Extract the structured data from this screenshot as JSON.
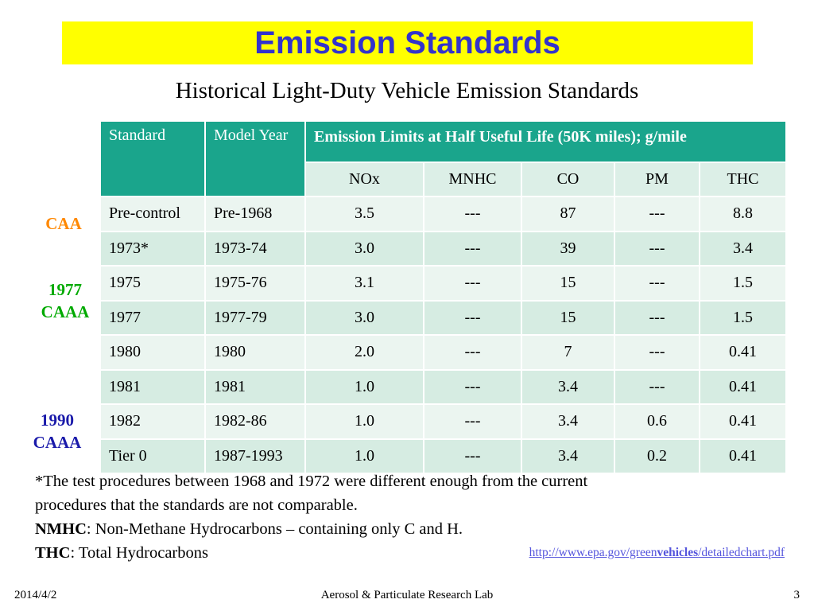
{
  "slide": {
    "title": "Emission Standards",
    "subtitle": "Historical Light-Duty Vehicle Emission Standards"
  },
  "table": {
    "headers": {
      "standard": "Standard",
      "model_year": "Model Year",
      "limits": "Emission Limits at Half Useful Life (50K miles); g/mile",
      "pollutants": [
        "NOx",
        "MNHC",
        "CO",
        "PM",
        "THC"
      ]
    },
    "rows": [
      {
        "standard": "Pre-control",
        "model_year": "Pre-1968",
        "nox": "3.5",
        "mnhc": "---",
        "co": "87",
        "pm": "---",
        "thc": "8.8"
      },
      {
        "standard": "1973*",
        "model_year": "1973-74",
        "nox": "3.0",
        "mnhc": "---",
        "co": "39",
        "pm": "---",
        "thc": "3.4"
      },
      {
        "standard": "1975",
        "model_year": "1975-76",
        "nox": "3.1",
        "mnhc": "---",
        "co": "15",
        "pm": "---",
        "thc": "1.5"
      },
      {
        "standard": "1977",
        "model_year": "1977-79",
        "nox": "3.0",
        "mnhc": "---",
        "co": "15",
        "pm": "---",
        "thc": "1.5"
      },
      {
        "standard": "1980",
        "model_year": "1980",
        "nox": "2.0",
        "mnhc": "---",
        "co": "7",
        "pm": "---",
        "thc": "0.41"
      },
      {
        "standard": "1981",
        "model_year": "1981",
        "nox": "1.0",
        "mnhc": "---",
        "co": "3.4",
        "pm": "---",
        "thc": "0.41"
      },
      {
        "standard": "1982",
        "model_year": "1982-86",
        "nox": "1.0",
        "mnhc": "---",
        "co": "3.4",
        "pm": "0.6",
        "thc": "0.41"
      },
      {
        "standard": "Tier 0",
        "model_year": "1987-1993",
        "nox": "1.0",
        "mnhc": "---",
        "co": "3.4",
        "pm": "0.2",
        "thc": "0.41"
      }
    ]
  },
  "side_labels": {
    "caa": "CAA",
    "caaa_1977": [
      "1977",
      "CAAA"
    ],
    "caaa_1990": [
      "1990",
      "CAAA"
    ]
  },
  "notes": {
    "footnote_line1": "*The test procedures between 1968 and 1972 were different enough from the current",
    "footnote_line2": "procedures that the standards are not comparable.",
    "nmhc_term": "NMHC",
    "nmhc_def": ": Non-Methane Hydrocarbons – containing only C and H.",
    "thc_term": "THC",
    "thc_def": ": Total Hydrocarbons"
  },
  "source_link": {
    "part1": "http://www.epa.gov/green",
    "part2": "vehicles",
    "part3": "/detailedchart.pdf"
  },
  "footer": {
    "date": "2014/4/2",
    "center": "Aerosol & Particulate Research Lab",
    "page": "3"
  },
  "colors": {
    "title_bg": "#ffff00",
    "title_text": "#3333cc",
    "table_header": "#1aa58c",
    "caa": "#ff8800",
    "caaa_1977": "#00aa00",
    "caaa_1990": "#1a1aaa"
  }
}
